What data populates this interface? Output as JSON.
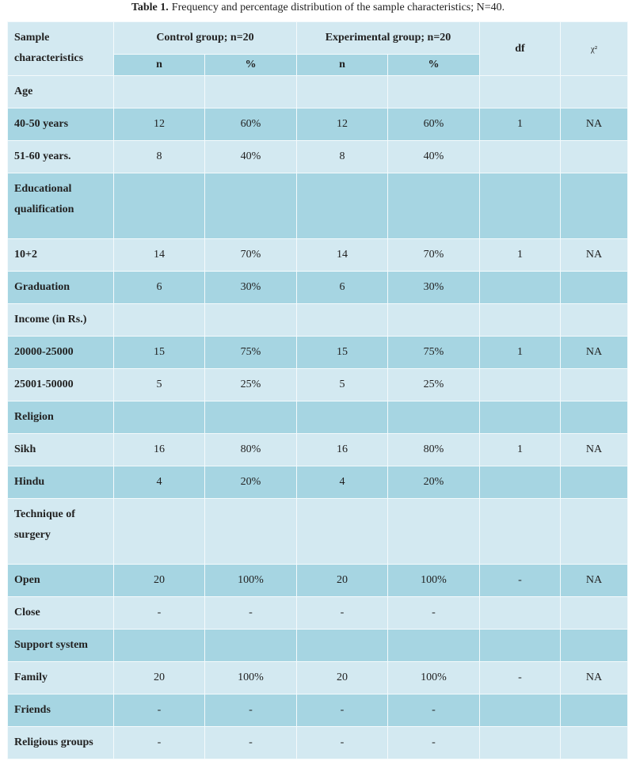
{
  "caption": {
    "label": "Table 1.",
    "text": "Frequency and percentage distribution of the sample characteristics; N=40."
  },
  "table": {
    "header": {
      "label": "Sample characteristics",
      "groups": [
        "Control group; n=20",
        "Experimental group; n=20"
      ],
      "df": "df",
      "chi": "χ²",
      "sub": [
        "n",
        "%",
        "n",
        "%"
      ]
    },
    "rows": [
      {
        "label": "Age"
      },
      {
        "label": "40-50 years",
        "cells": [
          "12",
          "60%",
          "12",
          "60%",
          "1",
          "NA"
        ]
      },
      {
        "label": "51-60 years.",
        "cells": [
          "8",
          "40%",
          "8",
          "40%",
          null,
          null
        ]
      },
      {
        "label": "Educational qualification"
      },
      {
        "label": "10+2",
        "cells": [
          "14",
          "70%",
          "14",
          "70%",
          "1",
          "NA"
        ]
      },
      {
        "label": "Graduation",
        "cells": [
          "6",
          "30%",
          "6",
          "30%",
          null,
          null
        ]
      },
      {
        "label": "Income (in Rs.)"
      },
      {
        "label": "20000-25000",
        "cells": [
          "15",
          "75%",
          "15",
          "75%",
          "1",
          "NA"
        ]
      },
      {
        "label": "25001-50000",
        "cells": [
          "5",
          "25%",
          "5",
          "25%",
          null,
          null
        ]
      },
      {
        "label": "Religion"
      },
      {
        "label": "Sikh",
        "cells": [
          "16",
          "80%",
          "16",
          "80%",
          "1",
          "NA"
        ]
      },
      {
        "label": "Hindu",
        "cells": [
          "4",
          "20%",
          "4",
          "20%",
          null,
          null
        ]
      },
      {
        "label": "Technique of surgery"
      },
      {
        "label": "Open",
        "cells": [
          "20",
          "100%",
          "20",
          "100%",
          "-",
          "NA"
        ]
      },
      {
        "label": "Close",
        "cells": [
          "-",
          "-",
          "-",
          "-",
          null,
          null
        ]
      },
      {
        "label": "Support system"
      },
      {
        "label": "Family",
        "cells": [
          "20",
          "100%",
          "20",
          "100%",
          "-",
          "NA"
        ]
      },
      {
        "label": "Friends",
        "cells": [
          "-",
          "-",
          "-",
          "-",
          null,
          null
        ]
      },
      {
        "label": "Religious groups",
        "cells": [
          "-",
          "-",
          "-",
          "-",
          null,
          null
        ]
      }
    ]
  }
}
